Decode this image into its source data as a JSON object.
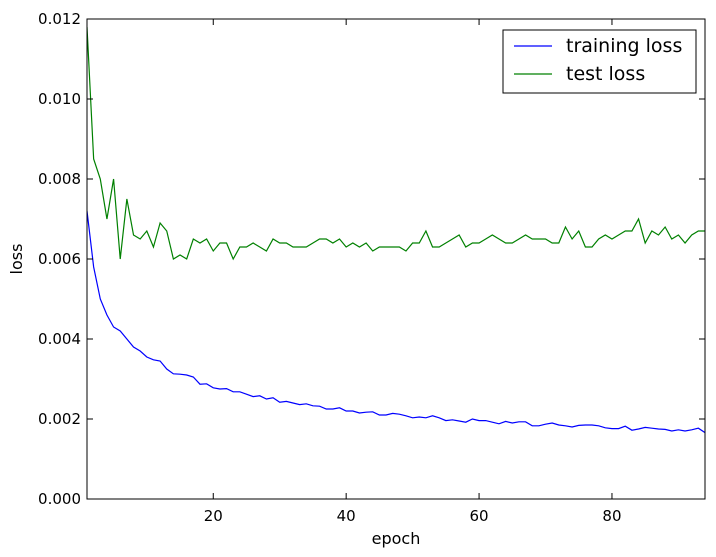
{
  "chart_data": {
    "type": "line",
    "title": "",
    "xlabel": "epoch",
    "ylabel": "loss",
    "xlim": [
      1,
      94
    ],
    "ylim": [
      0,
      0.012
    ],
    "xticks": [
      20,
      40,
      60,
      80
    ],
    "xtick_labels": [
      "20",
      "40",
      "60",
      "80"
    ],
    "yticks": [
      0,
      0.002,
      0.004,
      0.006,
      0.008,
      0.01,
      0.012
    ],
    "ytick_labels": [
      "0.000",
      "0.002",
      "0.004",
      "0.006",
      "0.008",
      "0.010",
      "0.012"
    ],
    "grid": false,
    "legend_position": "top-right",
    "x": [
      1,
      2,
      3,
      4,
      5,
      6,
      7,
      8,
      9,
      10,
      11,
      12,
      13,
      14,
      15,
      16,
      17,
      18,
      19,
      20,
      21,
      22,
      23,
      24,
      25,
      26,
      27,
      28,
      29,
      30,
      31,
      32,
      33,
      34,
      35,
      36,
      37,
      38,
      39,
      40,
      41,
      42,
      43,
      44,
      45,
      46,
      47,
      48,
      49,
      50,
      51,
      52,
      53,
      54,
      55,
      56,
      57,
      58,
      59,
      60,
      61,
      62,
      63,
      64,
      65,
      66,
      67,
      68,
      69,
      70,
      71,
      72,
      73,
      74,
      75,
      76,
      77,
      78,
      79,
      80,
      81,
      82,
      83,
      84,
      85,
      86,
      87,
      88,
      89,
      90,
      91,
      92,
      93,
      94
    ],
    "series": [
      {
        "name": "training loss",
        "color": "#0000ff",
        "values": [
          0.0072,
          0.0058,
          0.005,
          0.0046,
          0.0043,
          0.0042,
          0.004,
          0.0038,
          0.0037,
          0.00355,
          0.00348,
          0.00345,
          0.00325,
          0.00313,
          0.00312,
          0.0031,
          0.00305,
          0.00287,
          0.00288,
          0.00278,
          0.00275,
          0.00276,
          0.00268,
          0.00268,
          0.00262,
          0.00256,
          0.00258,
          0.0025,
          0.00253,
          0.00242,
          0.00244,
          0.0024,
          0.00236,
          0.00238,
          0.00233,
          0.00232,
          0.00225,
          0.00225,
          0.00228,
          0.0022,
          0.0022,
          0.00215,
          0.00217,
          0.00218,
          0.0021,
          0.0021,
          0.00214,
          0.00212,
          0.00208,
          0.00203,
          0.00205,
          0.00203,
          0.00208,
          0.00203,
          0.00196,
          0.00198,
          0.00195,
          0.00192,
          0.002,
          0.00196,
          0.00196,
          0.00192,
          0.00188,
          0.00194,
          0.0019,
          0.00193,
          0.00193,
          0.00183,
          0.00183,
          0.00187,
          0.0019,
          0.00185,
          0.00183,
          0.0018,
          0.00184,
          0.00185,
          0.00185,
          0.00183,
          0.00178,
          0.00176,
          0.00176,
          0.00182,
          0.00172,
          0.00175,
          0.00179,
          0.00177,
          0.00175,
          0.00174,
          0.0017,
          0.00173,
          0.0017,
          0.00173,
          0.00177,
          0.00166
        ]
      },
      {
        "name": "test loss",
        "color": "#008000",
        "values": [
          0.0118,
          0.0085,
          0.008,
          0.007,
          0.008,
          0.006,
          0.0075,
          0.0066,
          0.0065,
          0.0067,
          0.0063,
          0.0069,
          0.0067,
          0.006,
          0.0061,
          0.006,
          0.0065,
          0.0064,
          0.0065,
          0.0062,
          0.0064,
          0.0064,
          0.006,
          0.0063,
          0.0063,
          0.0064,
          0.0063,
          0.0062,
          0.0065,
          0.0064,
          0.0064,
          0.0063,
          0.0063,
          0.0063,
          0.0064,
          0.0065,
          0.0065,
          0.0064,
          0.0065,
          0.0063,
          0.0064,
          0.0063,
          0.0064,
          0.0062,
          0.0063,
          0.0063,
          0.0063,
          0.0063,
          0.0062,
          0.0064,
          0.0064,
          0.0067,
          0.0063,
          0.0063,
          0.0064,
          0.0065,
          0.0066,
          0.0063,
          0.0064,
          0.0064,
          0.0065,
          0.0066,
          0.0065,
          0.0064,
          0.0064,
          0.0065,
          0.0066,
          0.0065,
          0.0065,
          0.0065,
          0.0064,
          0.0064,
          0.0068,
          0.0065,
          0.0067,
          0.0063,
          0.0063,
          0.0065,
          0.0066,
          0.0065,
          0.0066,
          0.0067,
          0.0067,
          0.007,
          0.0064,
          0.0067,
          0.0066,
          0.0068,
          0.0065,
          0.0066,
          0.0064,
          0.0066,
          0.0067,
          0.0067
        ]
      }
    ]
  }
}
